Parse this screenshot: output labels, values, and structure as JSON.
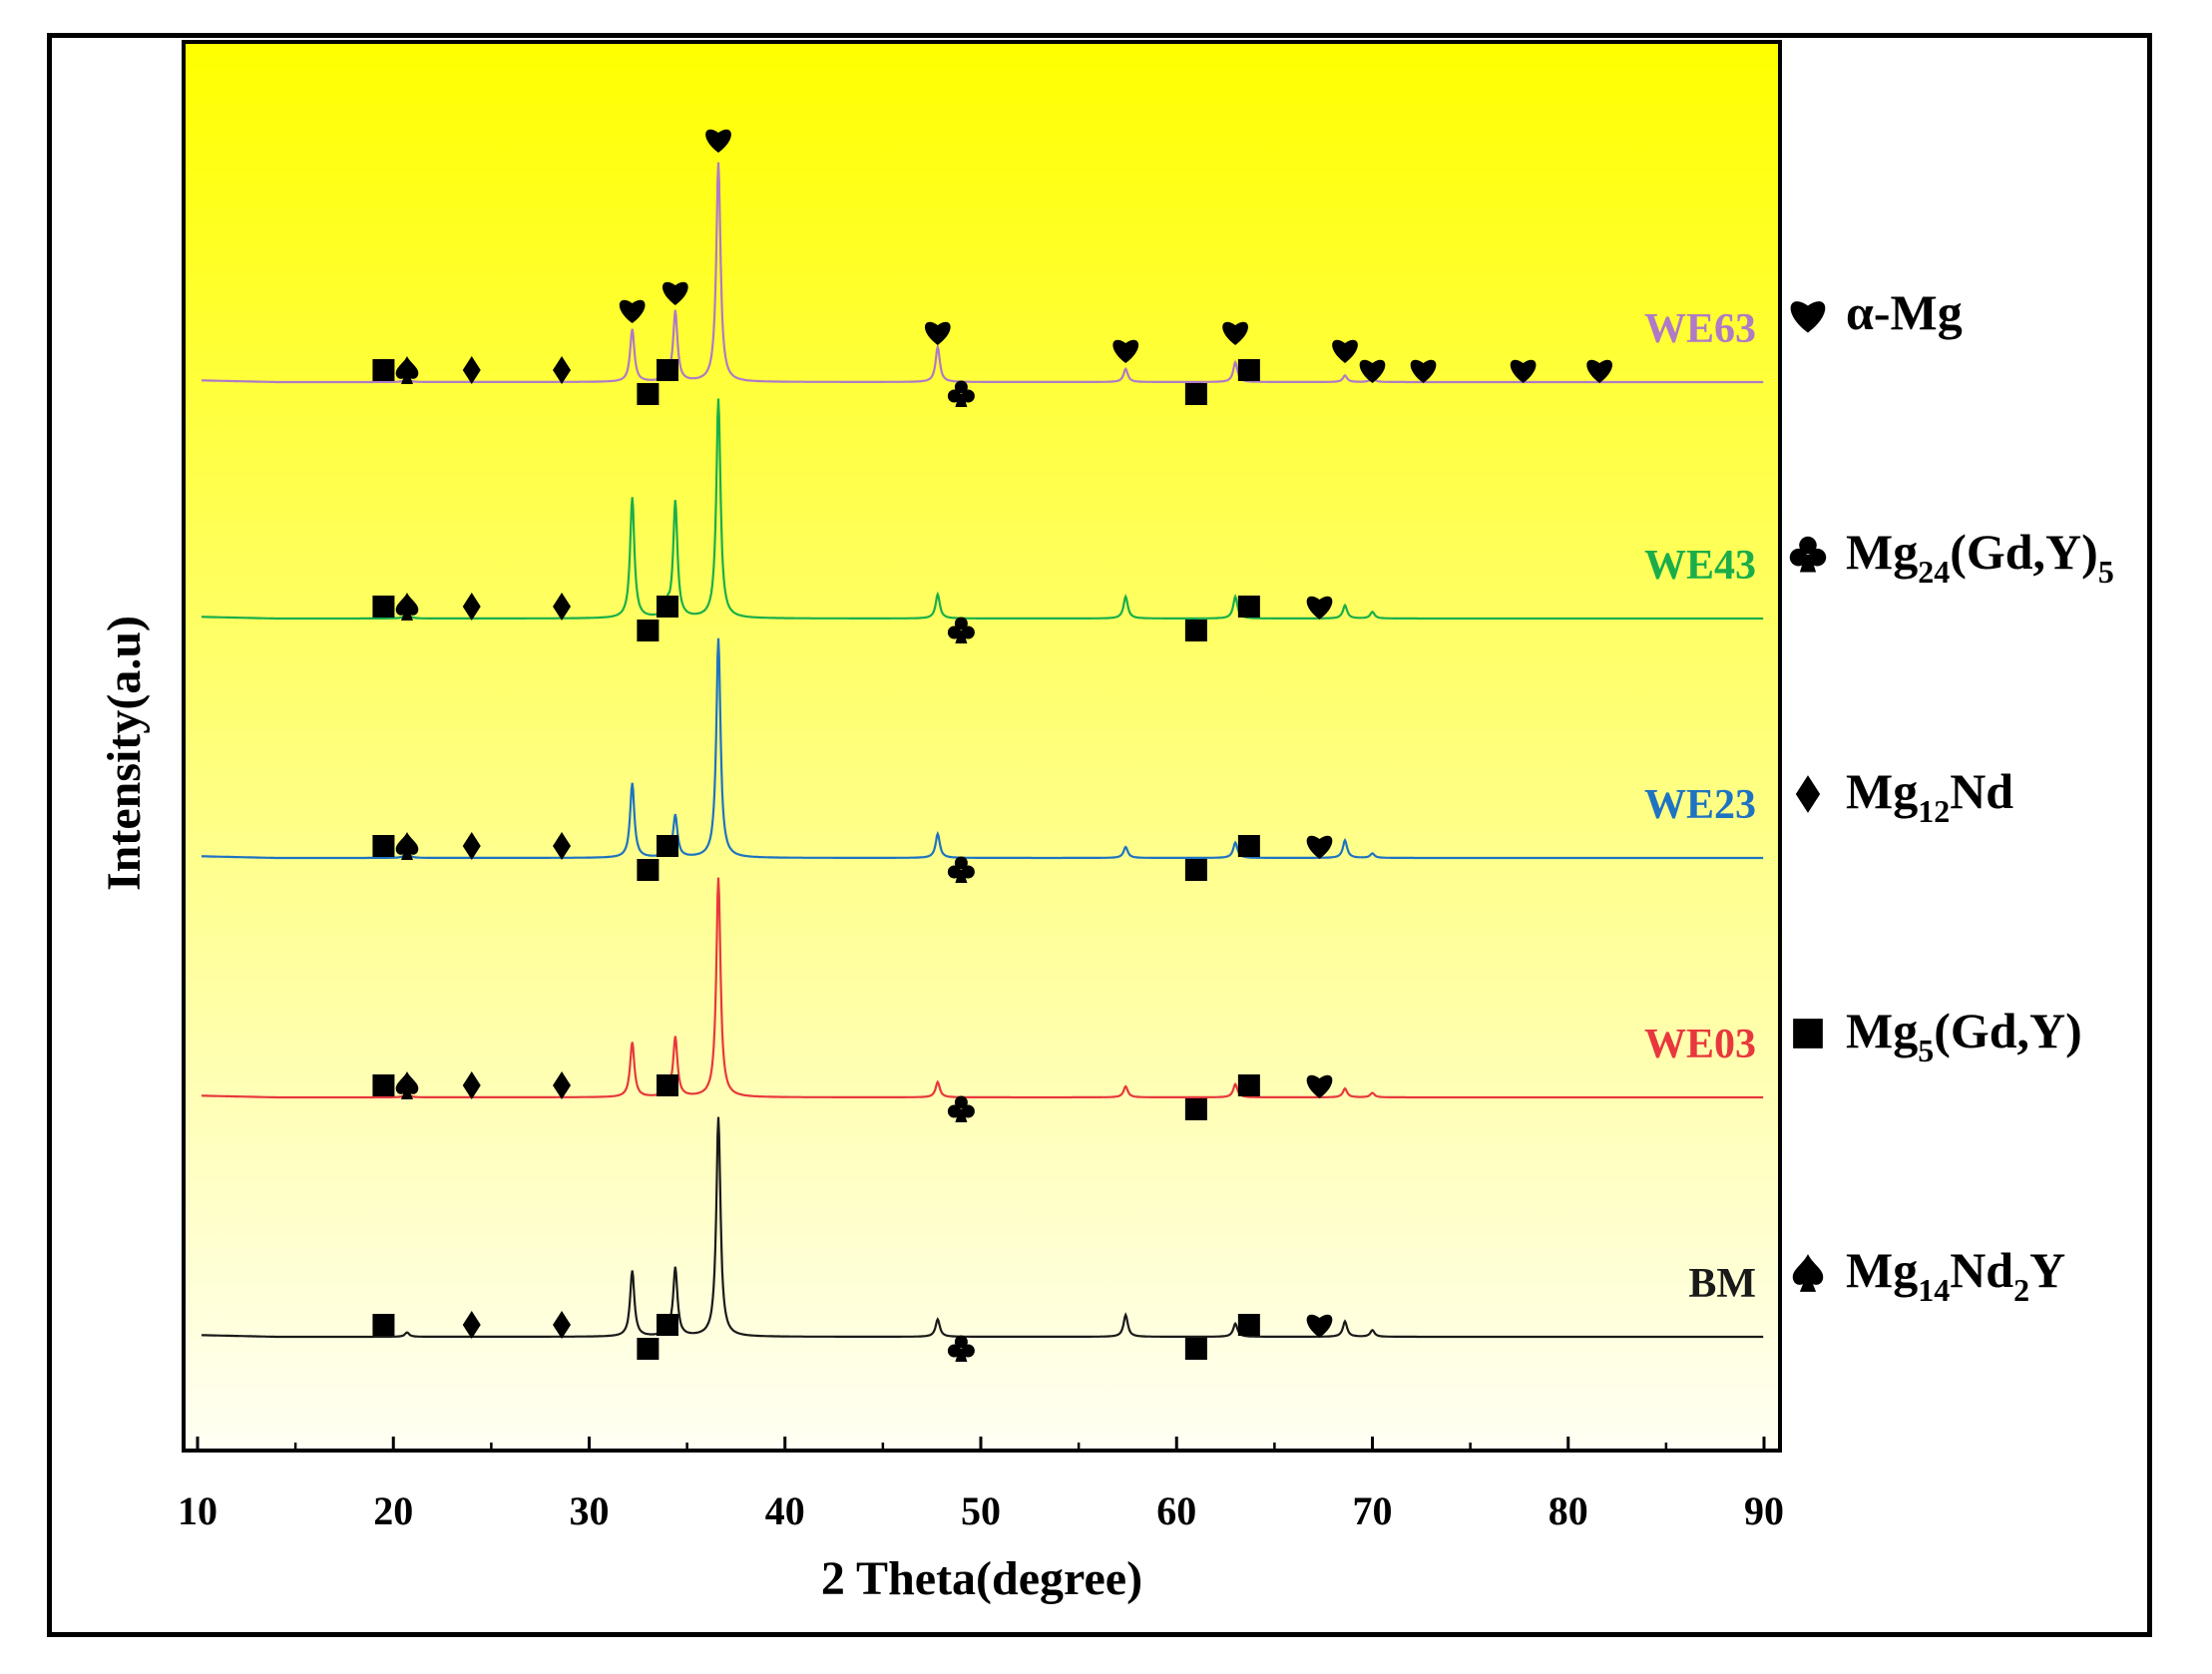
{
  "chart_data": {
    "type": "line",
    "title": "",
    "xlabel": "2 Theta(degree)",
    "ylabel": "Intensity(a.u)",
    "xlim": [
      10,
      90
    ],
    "xticks": [
      "10",
      "20",
      "30",
      "40",
      "50",
      "60",
      "70",
      "80",
      "90"
    ],
    "background_gradient": [
      "#FFFF00",
      "#FFFFF4"
    ],
    "series": [
      {
        "name": "WE63",
        "color": "#B07AC6",
        "baseline_rank": 5,
        "peaks": [
          [
            20.7,
            0.02
          ],
          [
            32.2,
            0.24
          ],
          [
            34.0,
            0.04
          ],
          [
            34.4,
            0.32
          ],
          [
            36.6,
            1.0
          ],
          [
            47.8,
            0.16
          ],
          [
            57.4,
            0.06
          ],
          [
            63.0,
            0.09
          ],
          [
            68.6,
            0.03
          ],
          [
            70.0,
            0.02
          ]
        ],
        "markers": [
          {
            "x": 19.5,
            "sym": "square",
            "pos": "mid"
          },
          {
            "x": 20.7,
            "sym": "spade",
            "pos": "mid"
          },
          {
            "x": 24.0,
            "sym": "diamond",
            "pos": "mid"
          },
          {
            "x": 28.6,
            "sym": "diamond",
            "pos": "mid"
          },
          {
            "x": 33.0,
            "sym": "square",
            "pos": "low"
          },
          {
            "x": 34.0,
            "sym": "square",
            "pos": "mid"
          },
          {
            "x": 32.2,
            "sym": "heart",
            "pos": "high"
          },
          {
            "x": 34.4,
            "sym": "heart",
            "pos": "high2"
          },
          {
            "x": 36.6,
            "sym": "heart",
            "pos": "top"
          },
          {
            "x": 47.8,
            "sym": "heart",
            "pos": "high3"
          },
          {
            "x": 49.0,
            "sym": "club",
            "pos": "low"
          },
          {
            "x": 57.4,
            "sym": "heart",
            "pos": "high4"
          },
          {
            "x": 61.0,
            "sym": "square",
            "pos": "low"
          },
          {
            "x": 63.0,
            "sym": "heart",
            "pos": "high3"
          },
          {
            "x": 63.7,
            "sym": "square",
            "pos": "mid"
          },
          {
            "x": 68.6,
            "sym": "heart",
            "pos": "high4"
          },
          {
            "x": 70.0,
            "sym": "heart",
            "pos": "mid"
          },
          {
            "x": 72.6,
            "sym": "heart",
            "pos": "mid"
          },
          {
            "x": 77.7,
            "sym": "heart",
            "pos": "mid"
          },
          {
            "x": 81.6,
            "sym": "heart",
            "pos": "mid"
          }
        ]
      },
      {
        "name": "WE43",
        "color": "#1AAE4A",
        "baseline_rank": 4,
        "peaks": [
          [
            20.7,
            0.03
          ],
          [
            32.2,
            0.55
          ],
          [
            34.0,
            0.05
          ],
          [
            34.4,
            0.53
          ],
          [
            36.6,
            1.0
          ],
          [
            47.8,
            0.11
          ],
          [
            57.4,
            0.1
          ],
          [
            63.0,
            0.1
          ],
          [
            68.6,
            0.06
          ],
          [
            70.0,
            0.03
          ]
        ],
        "markers": [
          {
            "x": 19.5,
            "sym": "square",
            "pos": "mid"
          },
          {
            "x": 20.7,
            "sym": "spade",
            "pos": "mid"
          },
          {
            "x": 24.0,
            "sym": "diamond",
            "pos": "mid"
          },
          {
            "x": 28.6,
            "sym": "diamond",
            "pos": "mid"
          },
          {
            "x": 33.0,
            "sym": "square",
            "pos": "low"
          },
          {
            "x": 34.0,
            "sym": "square",
            "pos": "mid"
          },
          {
            "x": 49.0,
            "sym": "club",
            "pos": "low"
          },
          {
            "x": 61.0,
            "sym": "square",
            "pos": "low"
          },
          {
            "x": 63.7,
            "sym": "square",
            "pos": "mid"
          },
          {
            "x": 67.3,
            "sym": "heart",
            "pos": "mid"
          }
        ]
      },
      {
        "name": "WE23",
        "color": "#1E73C2",
        "baseline_rank": 3,
        "peaks": [
          [
            20.7,
            0.03
          ],
          [
            32.2,
            0.34
          ],
          [
            34.0,
            0.05
          ],
          [
            34.4,
            0.19
          ],
          [
            36.6,
            1.0
          ],
          [
            47.8,
            0.11
          ],
          [
            57.4,
            0.05
          ],
          [
            63.0,
            0.07
          ],
          [
            68.6,
            0.08
          ],
          [
            70.0,
            0.02
          ]
        ],
        "markers": [
          {
            "x": 19.5,
            "sym": "square",
            "pos": "mid"
          },
          {
            "x": 20.7,
            "sym": "spade",
            "pos": "mid"
          },
          {
            "x": 24.0,
            "sym": "diamond",
            "pos": "mid"
          },
          {
            "x": 28.6,
            "sym": "diamond",
            "pos": "mid"
          },
          {
            "x": 33.0,
            "sym": "square",
            "pos": "low"
          },
          {
            "x": 34.0,
            "sym": "square",
            "pos": "mid"
          },
          {
            "x": 49.0,
            "sym": "club",
            "pos": "low"
          },
          {
            "x": 61.0,
            "sym": "square",
            "pos": "low"
          },
          {
            "x": 63.7,
            "sym": "square",
            "pos": "mid"
          },
          {
            "x": 67.3,
            "sym": "heart",
            "pos": "mid"
          }
        ]
      },
      {
        "name": "WE03",
        "color": "#E8383D",
        "baseline_rank": 2,
        "peaks": [
          [
            20.7,
            0.02
          ],
          [
            32.2,
            0.25
          ],
          [
            34.0,
            0.05
          ],
          [
            34.4,
            0.27
          ],
          [
            36.6,
            1.0
          ],
          [
            47.8,
            0.07
          ],
          [
            57.4,
            0.05
          ],
          [
            63.0,
            0.06
          ],
          [
            68.6,
            0.04
          ],
          [
            70.0,
            0.02
          ]
        ],
        "markers": [
          {
            "x": 19.5,
            "sym": "square",
            "pos": "mid"
          },
          {
            "x": 20.7,
            "sym": "spade",
            "pos": "mid"
          },
          {
            "x": 24.0,
            "sym": "diamond",
            "pos": "mid"
          },
          {
            "x": 28.6,
            "sym": "diamond",
            "pos": "mid"
          },
          {
            "x": 34.0,
            "sym": "square",
            "pos": "mid"
          },
          {
            "x": 49.0,
            "sym": "club",
            "pos": "low"
          },
          {
            "x": 61.0,
            "sym": "square",
            "pos": "low"
          },
          {
            "x": 63.7,
            "sym": "square",
            "pos": "mid"
          },
          {
            "x": 67.3,
            "sym": "heart",
            "pos": "mid"
          }
        ]
      },
      {
        "name": "BM",
        "color": "#1A1A1A",
        "baseline_rank": 1,
        "peaks": [
          [
            20.7,
            0.02
          ],
          [
            32.2,
            0.3
          ],
          [
            34.0,
            0.05
          ],
          [
            34.4,
            0.31
          ],
          [
            36.6,
            1.0
          ],
          [
            47.8,
            0.08
          ],
          [
            57.4,
            0.1
          ],
          [
            63.0,
            0.06
          ],
          [
            68.6,
            0.07
          ],
          [
            70.0,
            0.03
          ]
        ],
        "markers": [
          {
            "x": 19.5,
            "sym": "square",
            "pos": "mid"
          },
          {
            "x": 24.0,
            "sym": "diamond",
            "pos": "mid"
          },
          {
            "x": 28.6,
            "sym": "diamond",
            "pos": "mid"
          },
          {
            "x": 33.0,
            "sym": "square",
            "pos": "low"
          },
          {
            "x": 34.0,
            "sym": "square",
            "pos": "mid"
          },
          {
            "x": 49.0,
            "sym": "club",
            "pos": "low"
          },
          {
            "x": 61.0,
            "sym": "square",
            "pos": "low"
          },
          {
            "x": 63.7,
            "sym": "square",
            "pos": "mid"
          },
          {
            "x": 67.3,
            "sym": "heart",
            "pos": "mid"
          }
        ]
      }
    ],
    "legend": {
      "placement": "right",
      "entries": [
        {
          "symbol": "♥",
          "sym": "heart",
          "parts": [
            [
              "n",
              "α-Mg"
            ]
          ]
        },
        {
          "symbol": "♣",
          "sym": "club",
          "parts": [
            [
              "n",
              "Mg"
            ],
            [
              "s",
              "24"
            ],
            [
              "n",
              "(Gd,Y)"
            ],
            [
              "s",
              "5"
            ]
          ]
        },
        {
          "symbol": "♦",
          "sym": "diamond",
          "parts": [
            [
              "n",
              "Mg"
            ],
            [
              "s",
              "12"
            ],
            [
              "n",
              "Nd"
            ]
          ]
        },
        {
          "symbol": "■",
          "sym": "square",
          "parts": [
            [
              "n",
              "Mg"
            ],
            [
              "s",
              "5"
            ],
            [
              "n",
              "(Gd,Y)"
            ]
          ]
        },
        {
          "symbol": "♠",
          "sym": "spade",
          "parts": [
            [
              "n",
              "Mg"
            ],
            [
              "s",
              "14"
            ],
            [
              "n",
              "Nd"
            ],
            [
              "s",
              "2"
            ],
            [
              "n",
              "Y"
            ]
          ]
        }
      ]
    }
  }
}
